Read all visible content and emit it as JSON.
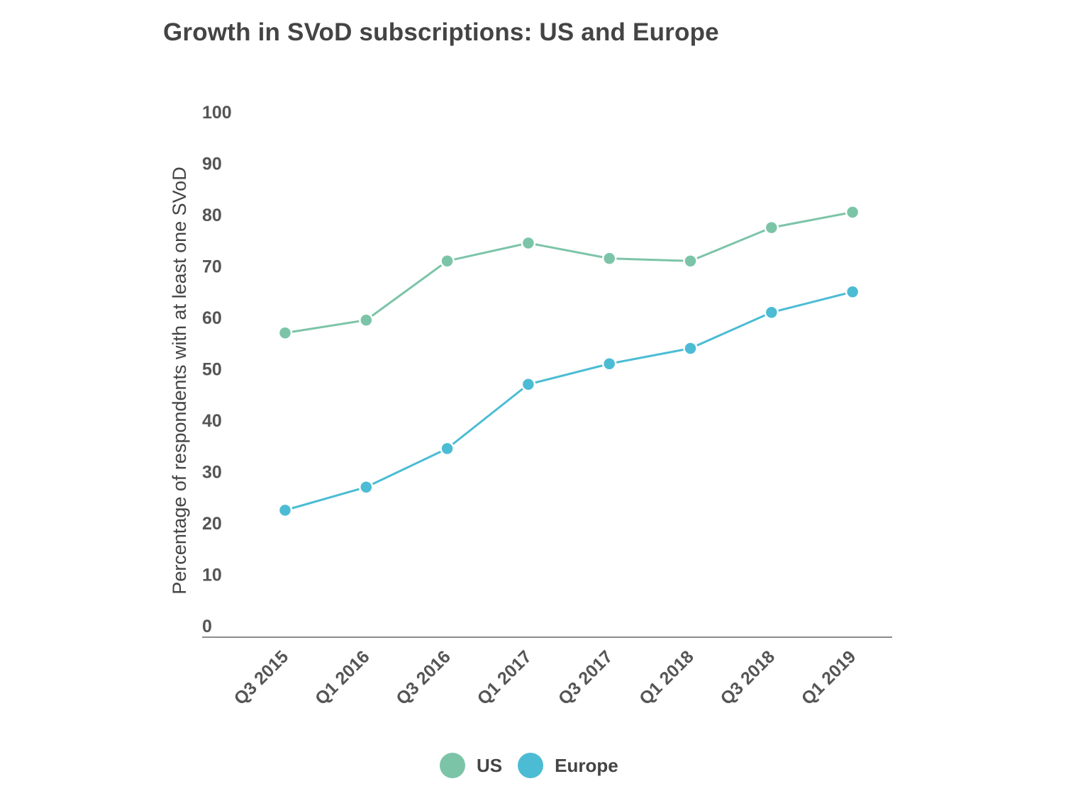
{
  "chart_data": {
    "type": "line",
    "title": "Growth in SVoD subscriptions: US and Europe",
    "xlabel": "",
    "ylabel": "Percentage of respondents with at least one SVoD",
    "categories": [
      "Q3 2015",
      "Q1 2016",
      "Q3 2016",
      "Q1 2017",
      "Q3 2017",
      "Q1 2018",
      "Q3 2018",
      "Q1 2019"
    ],
    "ylim": [
      0,
      100
    ],
    "yticks": [
      "0",
      "10",
      "20",
      "30",
      "40",
      "50",
      "60",
      "70",
      "80",
      "90",
      "100"
    ],
    "grid": false,
    "legend_position": "bottom-center",
    "series": [
      {
        "name": "US",
        "color": "#7cc4a8",
        "values": [
          57,
          59.5,
          71,
          74.5,
          71.5,
          71,
          77.5,
          80.5
        ]
      },
      {
        "name": "Europe",
        "color": "#4bbcd4",
        "values": [
          22.5,
          27,
          34.5,
          47,
          51,
          54,
          61,
          65
        ]
      }
    ]
  }
}
